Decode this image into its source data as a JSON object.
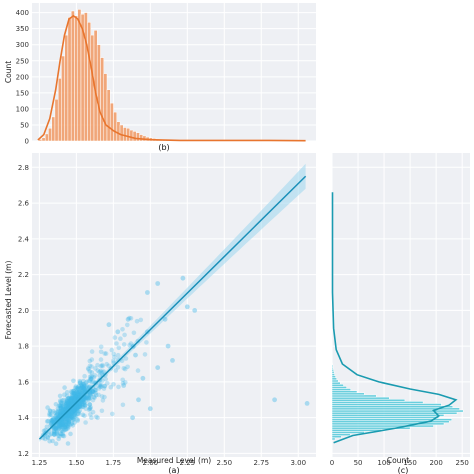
{
  "chart_data": [
    {
      "id": "a",
      "type": "scatter",
      "panel_label": "(a)",
      "xlabel": "Measured  Level (m)",
      "ylabel": "Forecasted  Level (m)",
      "xlim": [
        1.2,
        3.12
      ],
      "ylim": [
        1.18,
        2.88
      ],
      "xticks": [
        "1.25",
        "1.50",
        "1.75",
        "2.00",
        "2.25",
        "2.50",
        "2.75",
        "3.00"
      ],
      "yticks": [
        "1.2",
        "1.4",
        "1.6",
        "1.8",
        "2.0",
        "2.2",
        "2.4",
        "2.6",
        "2.8"
      ],
      "grid": true,
      "color": "#3fb6e8",
      "line_color": "#1a8fb8",
      "band_color": "#9fd7ef",
      "regression": {
        "x": [
          1.25,
          3.05
        ],
        "y": [
          1.28,
          2.75
        ]
      },
      "points_described": "dense cloud of ~2000 points concentrated between x 1.3-1.6 and y 1.3-1.6 with scattered outliers up to x 2.3",
      "outliers": [
        {
          "x": 2.25,
          "y": 2.02
        },
        {
          "x": 2.22,
          "y": 2.18
        },
        {
          "x": 1.98,
          "y": 2.1
        },
        {
          "x": 2.05,
          "y": 2.15
        },
        {
          "x": 1.85,
          "y": 1.95
        },
        {
          "x": 2.12,
          "y": 1.8
        },
        {
          "x": 2.05,
          "y": 1.68
        },
        {
          "x": 1.95,
          "y": 1.62
        },
        {
          "x": 2.15,
          "y": 1.72
        },
        {
          "x": 1.9,
          "y": 1.75
        },
        {
          "x": 1.92,
          "y": 1.5
        },
        {
          "x": 2.0,
          "y": 1.45
        },
        {
          "x": 1.88,
          "y": 1.4
        },
        {
          "x": 1.78,
          "y": 1.88
        },
        {
          "x": 2.3,
          "y": 2.0
        },
        {
          "x": 2.84,
          "y": 1.5
        },
        {
          "x": 3.06,
          "y": 1.48
        },
        {
          "x": 1.72,
          "y": 1.92
        },
        {
          "x": 1.82,
          "y": 1.58
        },
        {
          "x": 1.98,
          "y": 1.88
        },
        {
          "x": 2.1,
          "y": 1.95
        }
      ]
    },
    {
      "id": "b",
      "type": "bar",
      "panel_label": "(b)",
      "ylabel": "Count",
      "xlim": [
        1.2,
        3.12
      ],
      "ylim": [
        0,
        430
      ],
      "yticks": [
        "0",
        "50",
        "100",
        "150",
        "200",
        "250",
        "300",
        "350",
        "400"
      ],
      "grid": true,
      "color": "#f0935a",
      "kde_color": "#e8752e",
      "bin_width": 0.022,
      "bin_start": 1.245,
      "values": [
        5,
        10,
        22,
        40,
        75,
        130,
        195,
        265,
        330,
        385,
        405,
        390,
        410,
        395,
        400,
        370,
        330,
        345,
        300,
        260,
        210,
        160,
        118,
        90,
        60,
        50,
        42,
        40,
        34,
        30,
        26,
        20,
        16,
        12,
        10,
        8,
        6,
        5,
        5,
        4,
        3,
        3,
        2,
        2,
        2,
        1,
        1,
        1
      ],
      "kde": {
        "x": [
          1.24,
          1.28,
          1.32,
          1.36,
          1.39,
          1.42,
          1.45,
          1.48,
          1.51,
          1.54,
          1.57,
          1.6,
          1.63,
          1.66,
          1.7,
          1.75,
          1.8,
          1.9,
          2.0,
          2.2,
          2.5,
          2.8,
          3.05
        ],
        "y": [
          3,
          20,
          70,
          160,
          250,
          330,
          380,
          390,
          380,
          350,
          300,
          230,
          150,
          90,
          50,
          32,
          20,
          8,
          4,
          2,
          2,
          2,
          1
        ]
      }
    },
    {
      "id": "c",
      "type": "bar",
      "orientation": "horizontal",
      "panel_label": "(c)",
      "xlabel": "Count",
      "xlim": [
        0,
        265
      ],
      "ylim": [
        1.18,
        2.88
      ],
      "xticks": [
        "0",
        "50",
        "100",
        "150",
        "200",
        "250"
      ],
      "grid": true,
      "color": "#3ec3d6",
      "kde_color": "#1a9bb0",
      "bin_width": 0.012,
      "bin_start": 1.275,
      "values": [
        6,
        18,
        35,
        62,
        95,
        150,
        195,
        215,
        225,
        230,
        205,
        215,
        240,
        252,
        245,
        232,
        210,
        175,
        140,
        110,
        85,
        62,
        48,
        36,
        28,
        22,
        16,
        12,
        9,
        7,
        5,
        4,
        3,
        2,
        2,
        1
      ],
      "kde": {
        "y": [
          1.26,
          1.3,
          1.34,
          1.38,
          1.41,
          1.44,
          1.47,
          1.5,
          1.53,
          1.56,
          1.6,
          1.64,
          1.7,
          1.78,
          1.9,
          2.1,
          2.3,
          2.5,
          2.66
        ],
        "x": [
          3,
          40,
          120,
          190,
          205,
          195,
          225,
          238,
          205,
          150,
          90,
          48,
          20,
          8,
          3,
          1,
          1,
          1,
          1
        ]
      }
    }
  ]
}
